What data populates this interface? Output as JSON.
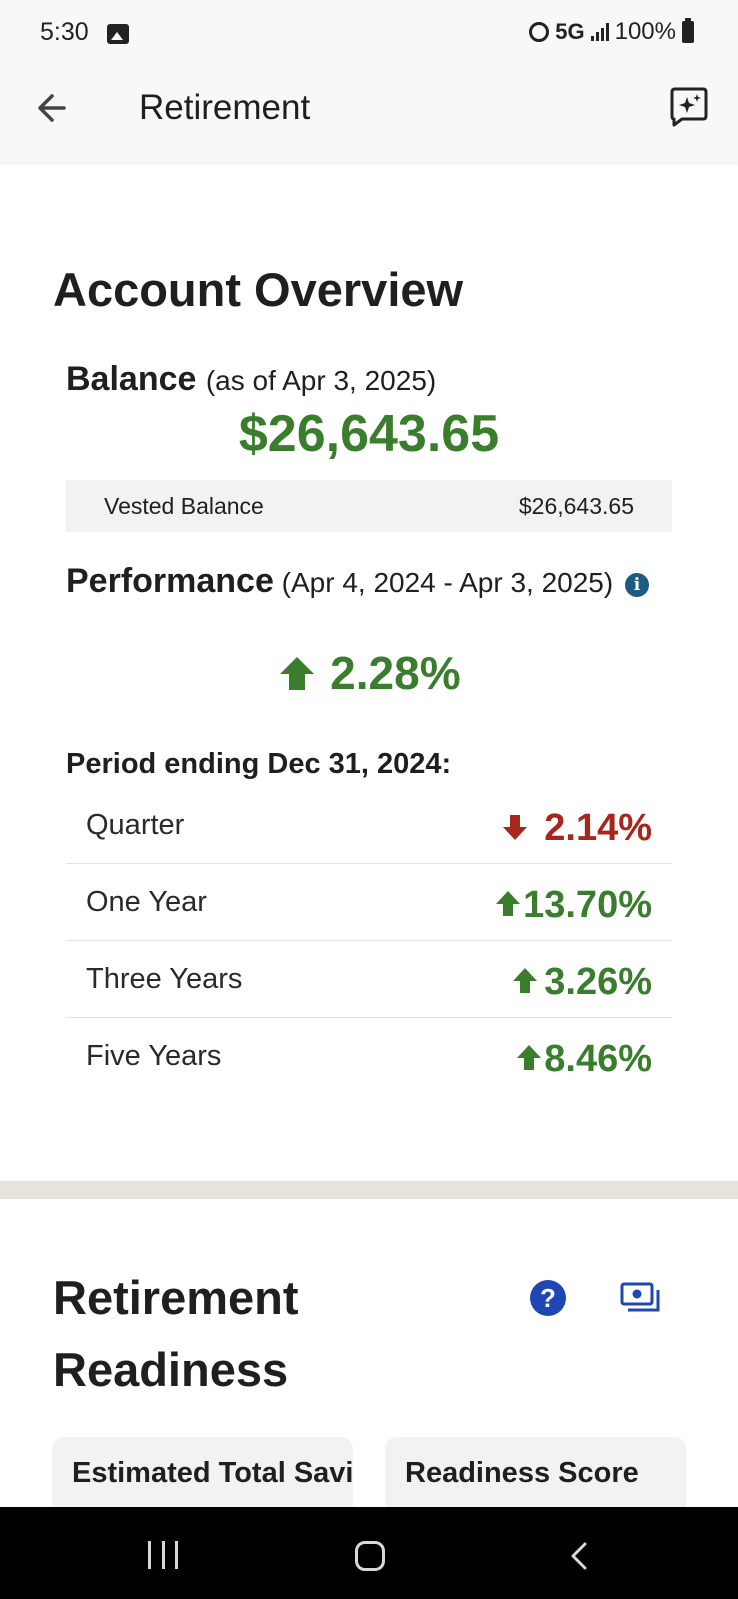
{
  "status_bar": {
    "time": "5:30",
    "network": "5G",
    "battery": "100%"
  },
  "app_bar": {
    "title": "Retirement"
  },
  "overview": {
    "title": "Account Overview",
    "balance_label": "Balance",
    "balance_date": "(as of Apr 3, 2025)",
    "balance_amount": "$26,643.65",
    "vested_label": "Vested Balance",
    "vested_amount": "$26,643.65",
    "performance_label": "Performance",
    "performance_range": "(Apr 4, 2024 - Apr 3, 2025)",
    "performance_value": "2.28%",
    "period_heading": "Period ending Dec 31, 2024:",
    "periods": [
      {
        "label": "Quarter",
        "value": "2.14%",
        "direction": "down"
      },
      {
        "label": "One Year",
        "value": "13.70%",
        "direction": "up"
      },
      {
        "label": "Three Years",
        "value": "3.26%",
        "direction": "up"
      },
      {
        "label": "Five Years",
        "value": "8.46%",
        "direction": "up"
      }
    ]
  },
  "readiness": {
    "title": "Retirement Readiness",
    "cards": [
      {
        "label": "Estimated Total Savings"
      },
      {
        "label": "Readiness Score"
      }
    ]
  },
  "colors": {
    "positive": "#3a7d2c",
    "negative": "#a7271e",
    "info": "#1d5c80",
    "help": "#1e47b4"
  }
}
